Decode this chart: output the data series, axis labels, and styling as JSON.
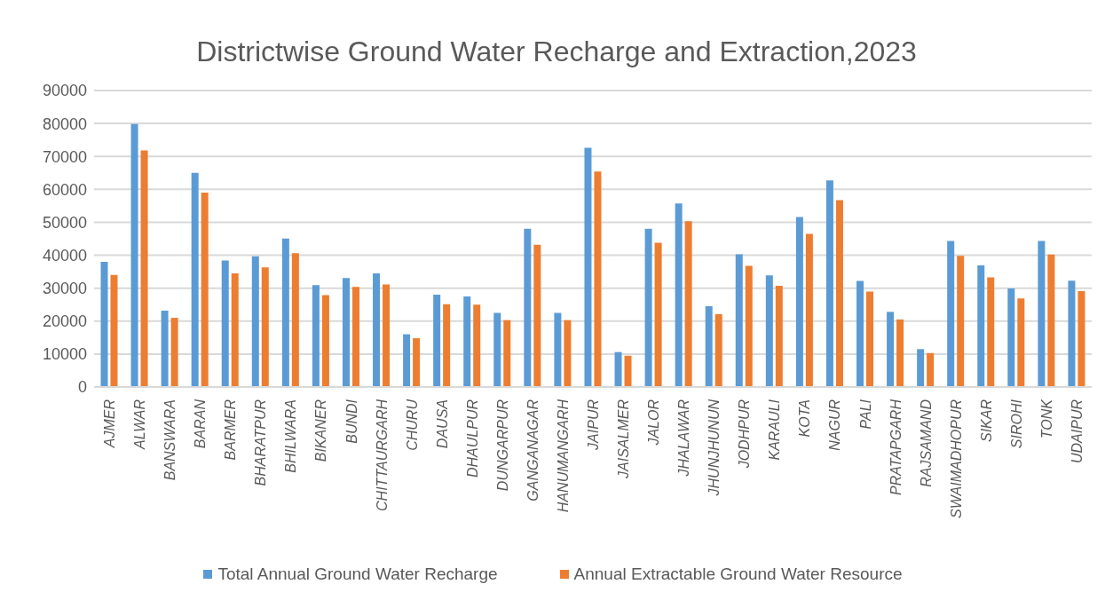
{
  "chart_data": {
    "type": "bar",
    "title": "Districtwise Ground Water Recharge and Extraction,2023",
    "categories": [
      "AJMER",
      "ALWAR",
      "BANSWARA",
      "BARAN",
      "BARMER",
      "BHARATPUR",
      "BHILWARA",
      "BIKANER",
      "BUNDI",
      "CHITTAURGARH",
      "CHURU",
      "DAUSA",
      "DHAULPUR",
      "DUNGARPUR",
      "GANGANAGAR",
      "HANUMANGARH",
      "JAIPUR",
      "JAISALMER",
      "JALOR",
      "JHALAWAR",
      "JHUNJHUNUN",
      "JODHPUR",
      "KARAULI",
      "KOTA",
      "NAGUR",
      "PALI",
      "PRATAPGARH",
      "RAJSAMAND",
      "SWAIMADHOPUR",
      "SIKAR",
      "SIROHI",
      "TONK",
      "UDAIPUR"
    ],
    "series": [
      {
        "name": "Total Annual Ground Water Recharge",
        "color": "#5b9bd5",
        "values": [
          38000,
          79800,
          23200,
          65000,
          38400,
          39700,
          45100,
          30900,
          33100,
          34500,
          16000,
          28000,
          27500,
          22500,
          48000,
          22500,
          72600,
          10600,
          48000,
          55700,
          24500,
          40300,
          33900,
          51600,
          62700,
          32200,
          22800,
          11500,
          44300,
          36900,
          29900,
          44300,
          32300
        ]
      },
      {
        "name": "Annual Extractable Ground Water Resource",
        "color": "#ed7d31",
        "values": [
          34000,
          71800,
          21000,
          59000,
          34500,
          36300,
          40600,
          27900,
          30400,
          31100,
          14800,
          25100,
          25000,
          20300,
          43200,
          20300,
          65400,
          9500,
          43800,
          50300,
          22100,
          36800,
          30700,
          46500,
          56700,
          29000,
          20500,
          10300,
          39800,
          33300,
          26900,
          40200,
          29100
        ]
      }
    ],
    "ylim": [
      0,
      90000
    ],
    "yticks": [
      0,
      10000,
      20000,
      30000,
      40000,
      50000,
      60000,
      70000,
      80000,
      90000
    ],
    "grid": "y",
    "legend": "bottom"
  }
}
